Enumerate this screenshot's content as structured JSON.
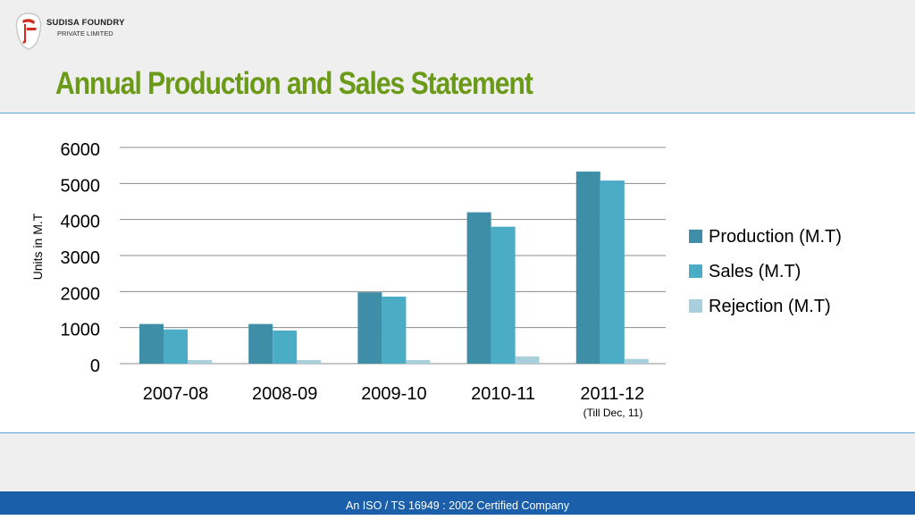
{
  "header": {
    "company_name": "SUDISA FOUNDRY",
    "company_sub": "PRIVATE LIMITED",
    "title": "Annual Production and Sales Statement"
  },
  "footer": {
    "text": "An ISO / TS 16949 : 2002 Certified Company"
  },
  "colors": {
    "title": "#6a9a17",
    "accent_line": "#5aa6d2",
    "footer_bg": "#1b5ea9",
    "production": "#3e8ea7",
    "sales": "#4bacc6",
    "rejection": "#a9cfdd"
  },
  "icons": {
    "logo": "sudisa-logo-icon"
  },
  "chart_data": {
    "type": "bar",
    "categories": [
      "2007-08",
      "2008-09",
      "2009-10",
      "2010-11",
      "2011-12"
    ],
    "category_note": {
      "category": "2011-12",
      "text": "(Till Dec, 11)"
    },
    "series": [
      {
        "name": "Production (M.T)",
        "values": [
          1100,
          1100,
          1980,
          4200,
          5330
        ]
      },
      {
        "name": "Sales (M.T)",
        "values": [
          950,
          920,
          1860,
          3800,
          5080
        ]
      },
      {
        "name": "Rejection (M.T)",
        "values": [
          100,
          100,
          100,
          200,
          130
        ]
      }
    ],
    "ylabel": "Units in M.T",
    "ylim": [
      0,
      6000
    ],
    "yticks": [
      0,
      1000,
      2000,
      3000,
      4000,
      5000,
      6000
    ],
    "grid": true,
    "legend": "right"
  }
}
